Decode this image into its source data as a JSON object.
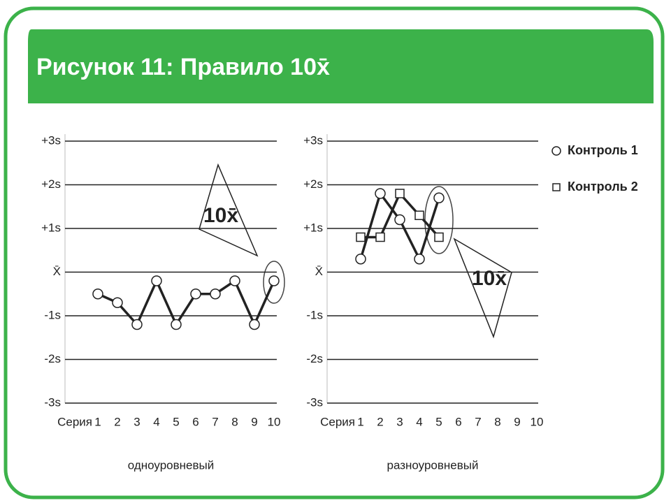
{
  "header": {
    "title": "Рисунок 11: Правило 10x̄"
  },
  "chart_data": [
    {
      "type": "line",
      "x_label": "Серия",
      "xlabel_below": "одноуровневый",
      "categories": [
        "1",
        "2",
        "3",
        "4",
        "5",
        "6",
        "7",
        "8",
        "9",
        "10"
      ],
      "values": [
        -0.5,
        -0.7,
        -1.2,
        -0.2,
        -1.2,
        -0.5,
        -0.5,
        -0.2,
        -1.2,
        -0.2
      ],
      "color": "#222222",
      "marker": "circle",
      "annotation": "10x̄",
      "ylim": [
        -3,
        3
      ],
      "yticks": [
        {
          "value": 3,
          "label": "+3s"
        },
        {
          "value": 2,
          "label": "+2s"
        },
        {
          "value": 1,
          "label": "+1s"
        },
        {
          "value": 0,
          "label": "X̄"
        },
        {
          "value": -1,
          "label": "-1s"
        },
        {
          "value": -2,
          "label": "-2s"
        },
        {
          "value": -3,
          "label": "-3s"
        }
      ],
      "grid": true
    },
    {
      "type": "line",
      "x_label": "Серия",
      "xlabel_below": "разноуровневый",
      "categories": [
        "1",
        "2",
        "3",
        "4",
        "5",
        "6",
        "7",
        "8",
        "9",
        "10"
      ],
      "series": [
        {
          "name": "Контроль 1",
          "color": "#222222",
          "marker": "circle",
          "values": [
            0.3,
            1.8,
            1.2,
            0.3,
            1.7,
            null,
            null,
            null,
            null,
            null
          ]
        },
        {
          "name": "Контроль 2",
          "color": "#222222",
          "marker": "square",
          "values": [
            0.8,
            0.8,
            1.8,
            1.3,
            0.8,
            null,
            null,
            null,
            null,
            null
          ]
        }
      ],
      "annotation": "10x̄",
      "legend": "right",
      "ylim": [
        -3,
        3
      ],
      "yticks": [
        {
          "value": 3,
          "label": "+3s"
        },
        {
          "value": 2,
          "label": "+2s"
        },
        {
          "value": 1,
          "label": "+1s"
        },
        {
          "value": 0,
          "label": "X̄"
        },
        {
          "value": -1,
          "label": "-1s"
        },
        {
          "value": -2,
          "label": "-2s"
        },
        {
          "value": -3,
          "label": "-3s"
        }
      ],
      "grid": true
    }
  ]
}
